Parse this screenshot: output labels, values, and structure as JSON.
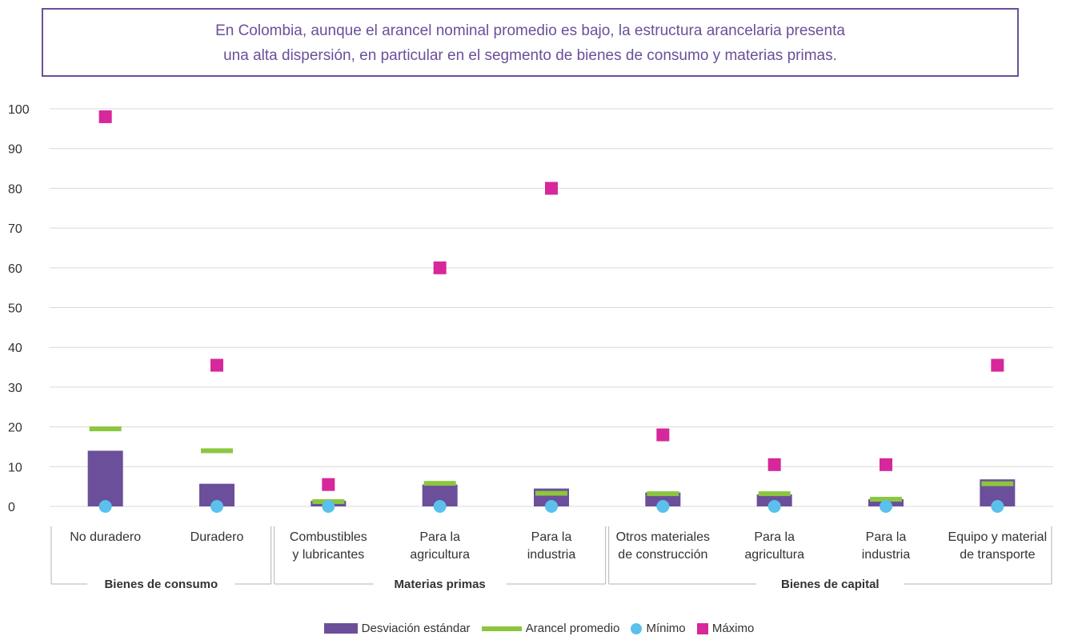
{
  "title": {
    "line1": "En Colombia, aunque el arancel nominal promedio es bajo, la estructura arancelaria presenta",
    "line2": "una alta dispersión, en particular en el segmento de bienes de consumo y materias primas."
  },
  "colors": {
    "title": "#6b4f9a",
    "std_bar": "#6b4f9a",
    "mean_line": "#8cc63f",
    "min_marker": "#5bc0eb",
    "max_marker": "#d6279b",
    "grid": "#d9d9d9"
  },
  "chart_data": {
    "type": "bar",
    "ylim": [
      0,
      100
    ],
    "yticks": [
      0,
      10,
      20,
      30,
      40,
      50,
      60,
      70,
      80,
      90,
      100
    ],
    "grid": true,
    "legend_position": "bottom",
    "categories": [
      {
        "lines": [
          "No duradero"
        ],
        "group": "Bienes de consumo"
      },
      {
        "lines": [
          "Duradero"
        ],
        "group": "Bienes de consumo"
      },
      {
        "lines": [
          "Combustibles",
          "y lubricantes"
        ],
        "group": "Materias primas"
      },
      {
        "lines": [
          "Para la",
          "agricultura"
        ],
        "group": "Materias primas"
      },
      {
        "lines": [
          "Para la",
          "industria"
        ],
        "group": "Materias primas"
      },
      {
        "lines": [
          "Otros materiales",
          "de construcción"
        ],
        "group": "Bienes de capital"
      },
      {
        "lines": [
          "Para la",
          "agricultura"
        ],
        "group": "Bienes de capital"
      },
      {
        "lines": [
          "Para la",
          "industria"
        ],
        "group": "Bienes de capital"
      },
      {
        "lines": [
          "Equipo y material",
          "de transporte"
        ],
        "group": "Bienes de capital"
      }
    ],
    "groups": [
      "Bienes de consumo",
      "Materias primas",
      "Bienes de capital"
    ],
    "series": [
      {
        "name": "Desviación estándar",
        "kind": "bar",
        "values": [
          14.0,
          5.7,
          1.4,
          5.5,
          4.5,
          3.5,
          3.0,
          1.8,
          6.8
        ]
      },
      {
        "name": "Arancel promedio",
        "kind": "line-marker",
        "values": [
          19.5,
          14.0,
          1.2,
          5.8,
          3.3,
          3.2,
          3.2,
          1.8,
          5.7
        ]
      },
      {
        "name": "Mínimo",
        "kind": "circle",
        "values": [
          0,
          0,
          0,
          0,
          0,
          0,
          0,
          0,
          0
        ]
      },
      {
        "name": "Máximo",
        "kind": "square",
        "values": [
          98,
          35.5,
          5.5,
          60,
          80,
          18,
          10.5,
          10.5,
          35.5
        ]
      }
    ]
  }
}
